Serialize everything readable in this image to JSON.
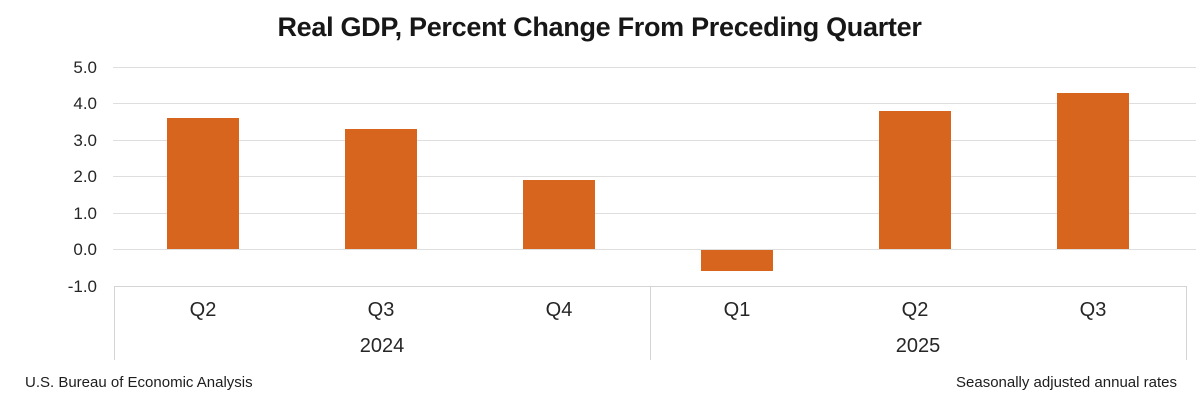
{
  "chart_data": {
    "type": "bar",
    "title": "Real GDP, Percent Change From Preceding Quarter",
    "categories": [
      "Q2",
      "Q3",
      "Q4",
      "Q1",
      "Q2",
      "Q3"
    ],
    "values": [
      3.6,
      3.3,
      1.9,
      -0.6,
      3.8,
      4.3
    ],
    "groups": [
      {
        "label": "2024",
        "quarter_count": 3
      },
      {
        "label": "2025",
        "quarter_count": 3
      }
    ],
    "ytick_labels": [
      "5.0",
      "4.0",
      "3.0",
      "2.0",
      "1.0",
      "0.0",
      "-1.0"
    ],
    "yticks": [
      5.0,
      4.0,
      3.0,
      2.0,
      1.0,
      0.0,
      -1.0
    ],
    "ylim": [
      -1.0,
      5.0
    ],
    "xlabel": "",
    "ylabel": "",
    "grid": true,
    "legend": "none",
    "bar_color": "#D7651E",
    "gridline_color": "#dedede",
    "axis_box_color": "#d4d4d4",
    "footnote_left": "U.S. Bureau of Economic Analysis",
    "footnote_right": "Seasonally adjusted annual rates"
  }
}
